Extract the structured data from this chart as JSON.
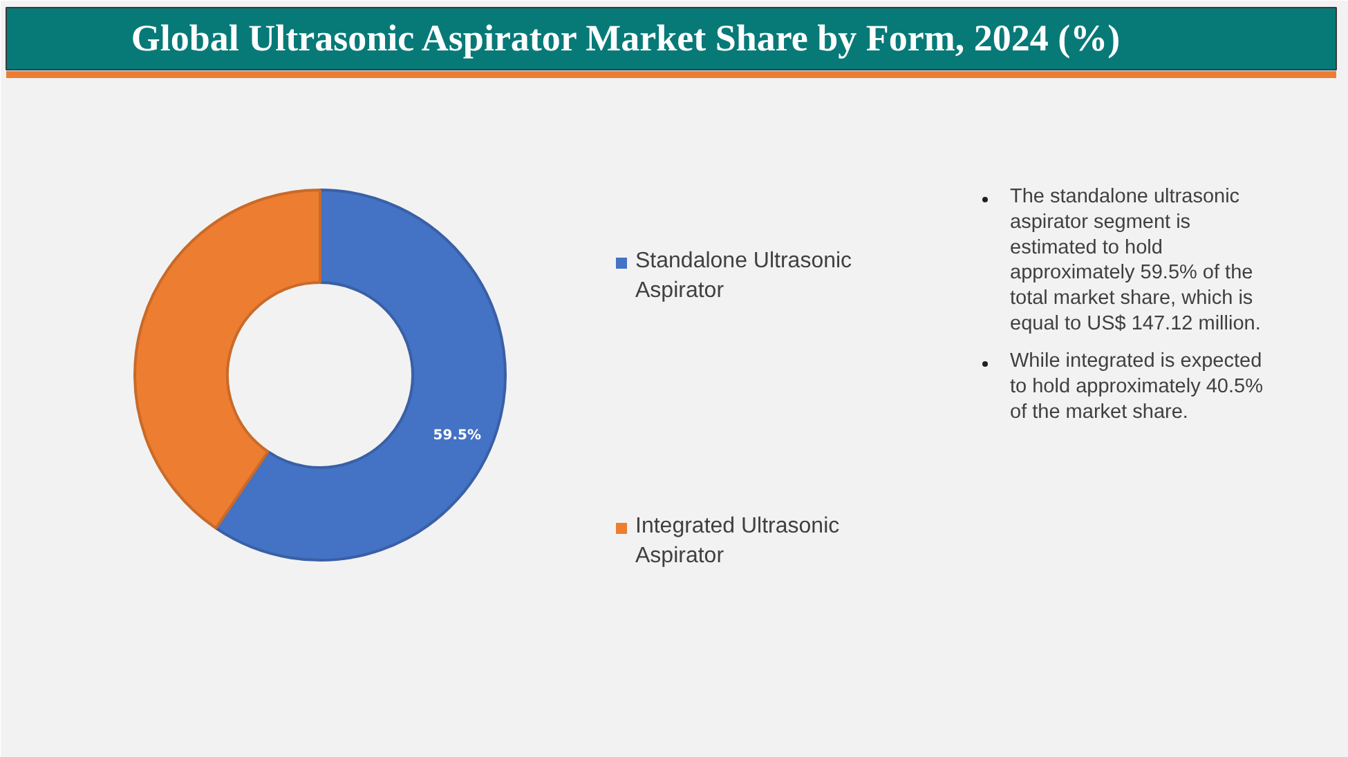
{
  "chart_data": {
    "type": "donut",
    "title": "Global Ultrasonic Aspirator Market Share by Form, 2024 (%)",
    "categories": [
      "Standalone Ultrasonic Aspirator",
      "Integrated Ultrasonic Aspirator"
    ],
    "values": [
      59.5,
      40.5
    ],
    "colors": [
      "#4472c4",
      "#ed7d31"
    ],
    "value_labels": [
      "59.5%",
      null
    ],
    "legend": "right",
    "annotations": [
      "The standalone ultrasonic aspirator segment is estimated to hold approximately 59.5% of the total market share, which is equal to US$ 147.12 million.",
      "While integrated is expected to hold approximately 40.5% of the market share."
    ]
  }
}
